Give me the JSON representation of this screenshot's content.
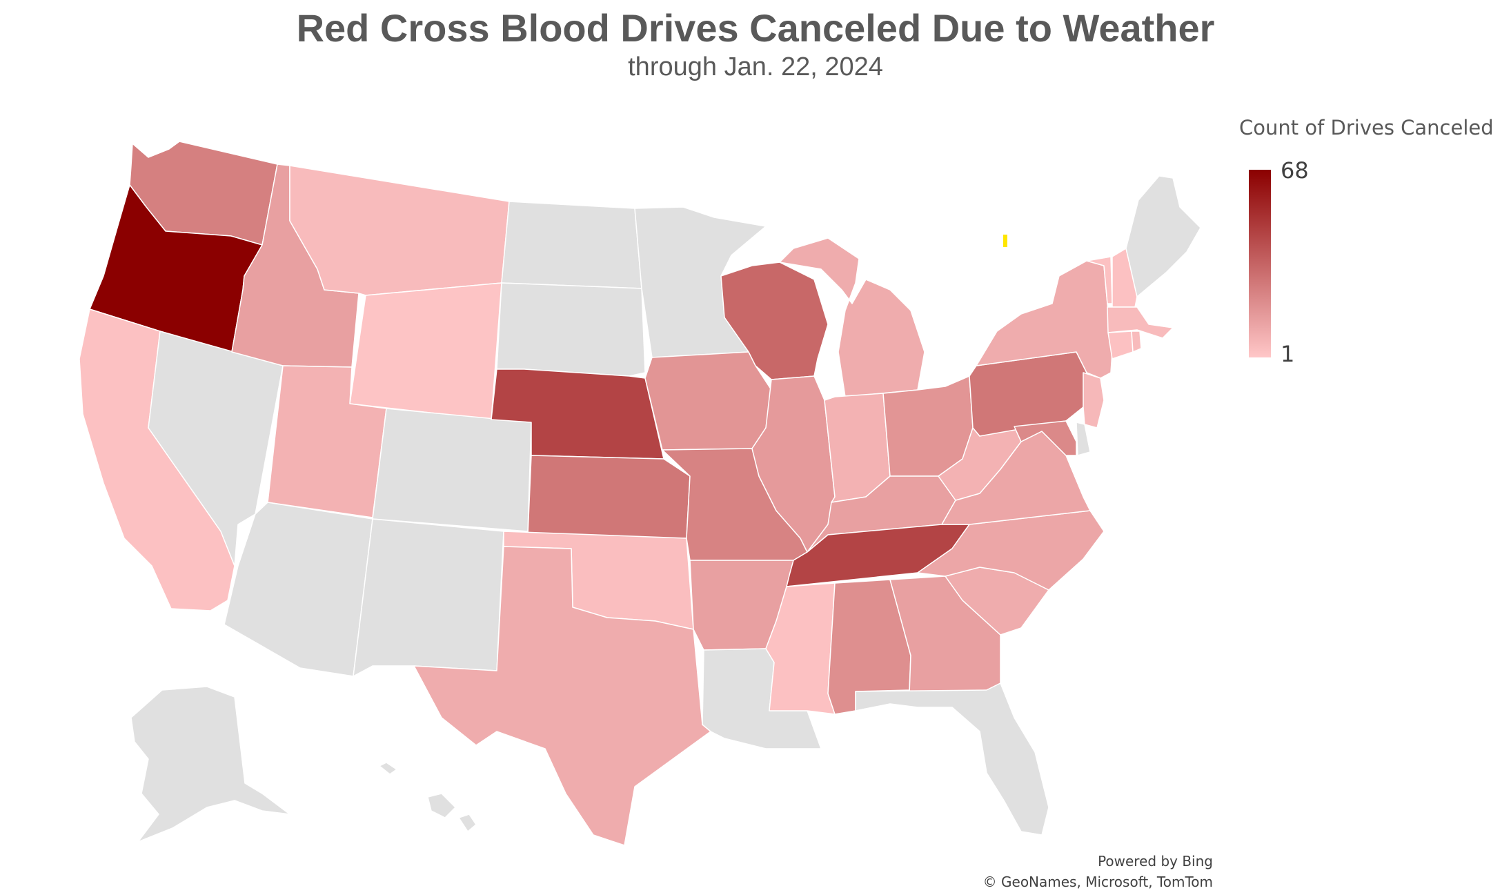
{
  "title": "Red Cross Blood Drives Canceled Due to Weather",
  "subtitle": "through Jan. 22, 2024",
  "legend": {
    "title": "Count of Drives Canceled",
    "max_label": "68",
    "min_label": "1",
    "color_max": "#8b0000",
    "color_min": "#ffc7c8",
    "no_data_color": "#e0e0e0"
  },
  "credits": {
    "line1": "Powered by Bing",
    "line2": "© GeoNames, Microsoft, TomTom"
  },
  "colors": {
    "highlight_mark": "#ffe600"
  },
  "chart_data": {
    "type": "choropleth",
    "scale_range": [
      1,
      68
    ],
    "states": [
      {
        "name": "Washington",
        "value": 25
      },
      {
        "name": "Oregon",
        "value": 68
      },
      {
        "name": "California",
        "value": 3
      },
      {
        "name": "Idaho",
        "value": 14
      },
      {
        "name": "Montana",
        "value": 5
      },
      {
        "name": "Wyoming",
        "value": 2
      },
      {
        "name": "Utah",
        "value": 8
      },
      {
        "name": "Nebraska",
        "value": 45
      },
      {
        "name": "Kansas",
        "value": 28
      },
      {
        "name": "Oklahoma",
        "value": 4
      },
      {
        "name": "Texas",
        "value": 10
      },
      {
        "name": "Iowa",
        "value": 18
      },
      {
        "name": "Missouri",
        "value": 24
      },
      {
        "name": "Arkansas",
        "value": 14
      },
      {
        "name": "Wisconsin",
        "value": 33
      },
      {
        "name": "Illinois",
        "value": 16
      },
      {
        "name": "Michigan",
        "value": 10
      },
      {
        "name": "Indiana",
        "value": 8
      },
      {
        "name": "Ohio",
        "value": 18
      },
      {
        "name": "Kentucky",
        "value": 14
      },
      {
        "name": "Tennessee",
        "value": 45
      },
      {
        "name": "Mississippi",
        "value": 3
      },
      {
        "name": "Alabama",
        "value": 20
      },
      {
        "name": "Georgia",
        "value": 14
      },
      {
        "name": "South Carolina",
        "value": 10
      },
      {
        "name": "North Carolina",
        "value": 12
      },
      {
        "name": "Virginia",
        "value": 12
      },
      {
        "name": "West Virginia",
        "value": 8
      },
      {
        "name": "Pennsylvania",
        "value": 28
      },
      {
        "name": "Maryland",
        "value": 22
      },
      {
        "name": "New York",
        "value": 10
      },
      {
        "name": "New Jersey",
        "value": 6
      },
      {
        "name": "Vermont",
        "value": 3
      },
      {
        "name": "New Hampshire",
        "value": 3
      },
      {
        "name": "Massachusetts",
        "value": 5
      },
      {
        "name": "Connecticut",
        "value": 3
      },
      {
        "name": "Rhode Island",
        "value": 5
      },
      {
        "name": "Nevada",
        "value": null
      },
      {
        "name": "Arizona",
        "value": null
      },
      {
        "name": "New Mexico",
        "value": null
      },
      {
        "name": "Colorado",
        "value": null
      },
      {
        "name": "North Dakota",
        "value": null
      },
      {
        "name": "South Dakota",
        "value": null
      },
      {
        "name": "Minnesota",
        "value": null
      },
      {
        "name": "Louisiana",
        "value": null
      },
      {
        "name": "Florida",
        "value": null
      },
      {
        "name": "Maine",
        "value": null
      },
      {
        "name": "Delaware",
        "value": null
      },
      {
        "name": "Alaska",
        "value": null
      },
      {
        "name": "Hawaii",
        "value": null
      }
    ]
  }
}
